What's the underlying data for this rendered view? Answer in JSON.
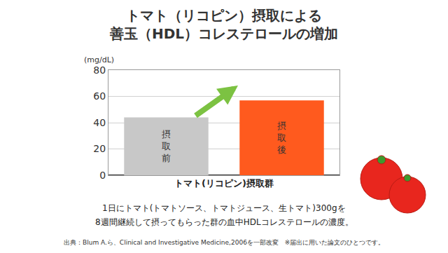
{
  "chart_data": {
    "type": "bar",
    "title": [
      "トマト（リコピン）摂取による",
      "善玉（HDL）コレステロールの増加"
    ],
    "y_label": "(mg/dL)",
    "x_label": "トマト(リコピン)摂取群",
    "categories": [
      "摂取前",
      "摂取後"
    ],
    "values": [
      44,
      57
    ],
    "colors": [
      "#c8c8c8",
      "#ff5a1e"
    ],
    "ylim": [
      0,
      80
    ],
    "yticks": [
      0,
      20,
      40,
      60,
      80
    ],
    "grid": true,
    "tick_labels": "y",
    "annotations": [
      "1日にトマト(トマトソース、トマトジュース、生トマト)300gを",
      "8週間継続して摂ってもらった群の血中HDLコレステロールの濃度。"
    ],
    "source": "出典：Blum A.ら、Clinical and Investigative Medicine,2006を一部改変　※届出に用いた論文のひとつです。"
  }
}
